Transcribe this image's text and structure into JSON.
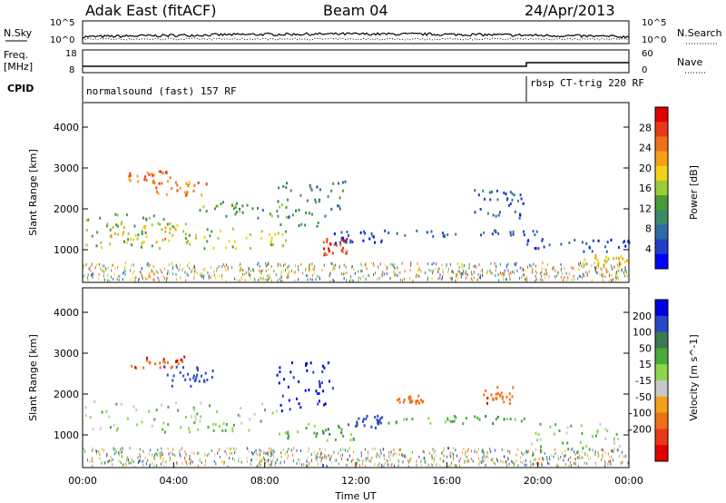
{
  "header": {
    "station": "Adak East (fitACF)",
    "beam": "Beam 04",
    "date": "24/Apr/2013"
  },
  "left_labels": {
    "nsky": "N.Sky",
    "freq_line1": "Freq.",
    "freq_line2": "[MHz]",
    "cpid": "CPID"
  },
  "right_labels": {
    "nsearch": "N.Search",
    "nave": "Nave"
  },
  "modes": {
    "first": "normalsound (fast) 157 RF",
    "second": "rbsp CT-trig 220 RF"
  },
  "noise_panel": {
    "left_ticks": [
      "10^5",
      "10^0"
    ],
    "right_ticks": [
      "10^5",
      "10^0"
    ]
  },
  "freq_panel": {
    "left_ticks": [
      "18",
      "8"
    ],
    "right_ticks": [
      "60",
      "0"
    ]
  },
  "chart_data": [
    {
      "type": "heatmap",
      "panel": "power",
      "ylabel": "Slant Range [km]",
      "xlabel": "",
      "yticks": [
        "1000",
        "2000",
        "3000",
        "4000"
      ],
      "ylim": [
        200,
        4600
      ],
      "colorbar": {
        "label": "Power [dB]",
        "ticks": [
          "4",
          "8",
          "12",
          "16",
          "20",
          "24",
          "28"
        ],
        "range": [
          0,
          32
        ],
        "colors": [
          "#0000ff",
          "#1f3fc8",
          "#2f6aa6",
          "#3b8a68",
          "#4a9a3a",
          "#9ccc3a",
          "#f5d21a",
          "#f7a018",
          "#f07018",
          "#e83a16",
          "#e00000"
        ]
      },
      "regions": [
        {
          "t0": 0.1,
          "t1": 4.0,
          "r0": 1050,
          "r1": 1900,
          "p": 14
        },
        {
          "t0": 1.2,
          "t1": 4.8,
          "r0": 1200,
          "r1": 1700,
          "p": 20
        },
        {
          "t0": 2.0,
          "t1": 4.0,
          "r0": 2700,
          "r1": 2950,
          "p": 26
        },
        {
          "t0": 3.0,
          "t1": 5.5,
          "r0": 2350,
          "r1": 2700,
          "p": 24
        },
        {
          "t0": 4.5,
          "t1": 9.0,
          "r0": 1050,
          "r1": 1550,
          "p": 16
        },
        {
          "t0": 5.0,
          "t1": 9.0,
          "r0": 1800,
          "r1": 2200,
          "p": 12
        },
        {
          "t0": 8.5,
          "t1": 11.5,
          "r0": 1600,
          "r1": 2700,
          "p": 10
        },
        {
          "t0": 10.5,
          "t1": 11.6,
          "r0": 900,
          "r1": 1300,
          "p": 28
        },
        {
          "t0": 11.0,
          "t1": 13.5,
          "r0": 1150,
          "r1": 1500,
          "p": 5
        },
        {
          "t0": 13.5,
          "t1": 20.0,
          "r0": 1350,
          "r1": 1500,
          "p": 7
        },
        {
          "t0": 17.0,
          "t1": 19.5,
          "r0": 1800,
          "r1": 2500,
          "p": 6
        },
        {
          "t0": 19.5,
          "t1": 24.0,
          "r0": 950,
          "r1": 1300,
          "p": 5
        },
        {
          "t0": 22.0,
          "t1": 24.0,
          "r0": 600,
          "r1": 900,
          "p": 18
        }
      ]
    },
    {
      "type": "heatmap",
      "panel": "velocity",
      "ylabel": "Slant Range [km]",
      "xlabel": "Time UT",
      "yticks": [
        "1000",
        "2000",
        "3000",
        "4000"
      ],
      "ylim": [
        200,
        4600
      ],
      "xticks": [
        "00:00",
        "04:00",
        "08:00",
        "12:00",
        "16:00",
        "20:00",
        "00:00"
      ],
      "xlim": [
        0,
        24
      ],
      "colorbar": {
        "label": "Velocity [m s^-1]",
        "ticks": [
          "200",
          "100",
          "50",
          "15",
          "-15",
          "-50",
          "-100",
          "-200"
        ],
        "colors": [
          "#0000e0",
          "#2848c8",
          "#3a7a50",
          "#4aaa3a",
          "#8ed64a",
          "#c8c8c8",
          "#f5a018",
          "#f07018",
          "#e83a16",
          "#e00000"
        ]
      },
      "regions": [
        {
          "t0": 0.0,
          "t1": 8.5,
          "r0": 1100,
          "r1": 1850,
          "v": 0
        },
        {
          "t0": 2.0,
          "t1": 4.5,
          "r0": 2650,
          "r1": 2950,
          "v": -180
        },
        {
          "t0": 3.5,
          "t1": 6.0,
          "r0": 2200,
          "r1": 2700,
          "v": 150
        },
        {
          "t0": 8.5,
          "t1": 11.0,
          "r0": 1600,
          "r1": 2800,
          "v": 220
        },
        {
          "t0": 8.5,
          "t1": 12.0,
          "r0": 900,
          "r1": 1300,
          "v": 40
        },
        {
          "t0": 12.0,
          "t1": 13.2,
          "r0": 1200,
          "r1": 1500,
          "v": 160
        },
        {
          "t0": 13.0,
          "t1": 19.5,
          "r0": 1300,
          "r1": 1500,
          "v": 30
        },
        {
          "t0": 13.8,
          "t1": 15.0,
          "r0": 1800,
          "r1": 2000,
          "v": -150
        },
        {
          "t0": 17.5,
          "t1": 19.0,
          "r0": 1800,
          "r1": 2200,
          "v": -180
        },
        {
          "t0": 19.5,
          "t1": 24.0,
          "r0": 500,
          "r1": 1300,
          "v": 0
        }
      ]
    }
  ]
}
